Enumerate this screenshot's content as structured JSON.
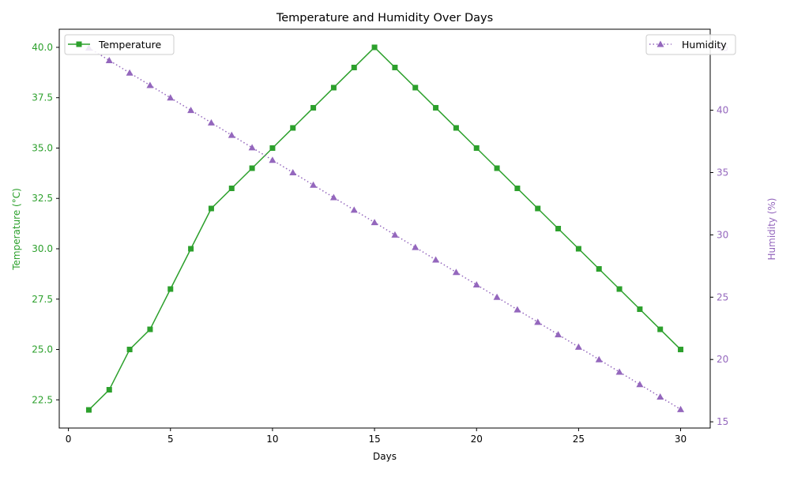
{
  "chart_data": {
    "type": "line",
    "title": "Temperature and Humidity Over Days",
    "xlabel": "Days",
    "ylabel_left": "Temperature (°C)",
    "ylabel_right": "Humidity (%)",
    "xlim": [
      -0.45,
      31.45
    ],
    "ylim_left": [
      21.1,
      40.9
    ],
    "ylim_right": [
      14.5,
      46.5
    ],
    "x_ticks": [
      0,
      5,
      10,
      15,
      20,
      25,
      30
    ],
    "y_ticks_left": [
      "22.5",
      "25.0",
      "27.5",
      "30.0",
      "32.5",
      "35.0",
      "37.5",
      "40.0"
    ],
    "y_ticks_right": [
      15,
      20,
      25,
      30,
      35,
      40,
      45
    ],
    "grid": false,
    "x": [
      1,
      2,
      3,
      4,
      5,
      6,
      7,
      8,
      9,
      10,
      11,
      12,
      13,
      14,
      15,
      16,
      17,
      18,
      19,
      20,
      21,
      22,
      23,
      24,
      25,
      26,
      27,
      28,
      29,
      30
    ],
    "series": [
      {
        "name": "Temperature",
        "axis": "left",
        "color": "#2ca02c",
        "marker": "square",
        "line_style": "solid",
        "values": [
          22,
          23,
          25,
          26,
          28,
          30,
          32,
          33,
          34,
          35,
          36,
          37,
          38,
          39,
          40,
          39,
          38,
          37,
          36,
          35,
          34,
          33,
          32,
          31,
          30,
          29,
          28,
          27,
          26,
          25
        ]
      },
      {
        "name": "Humidity",
        "axis": "right",
        "color": "#9467bd",
        "marker": "triangle",
        "line_style": "dotted",
        "values": [
          45,
          44,
          43,
          42,
          41,
          40,
          39,
          38,
          37,
          36,
          35,
          34,
          33,
          32,
          31,
          30,
          29,
          28,
          27,
          26,
          25,
          24,
          23,
          22,
          21,
          20,
          19,
          18,
          17,
          16
        ]
      }
    ],
    "legends": [
      {
        "series": "Temperature",
        "placement": "upper-left"
      },
      {
        "series": "Humidity",
        "placement": "upper-right"
      }
    ]
  }
}
